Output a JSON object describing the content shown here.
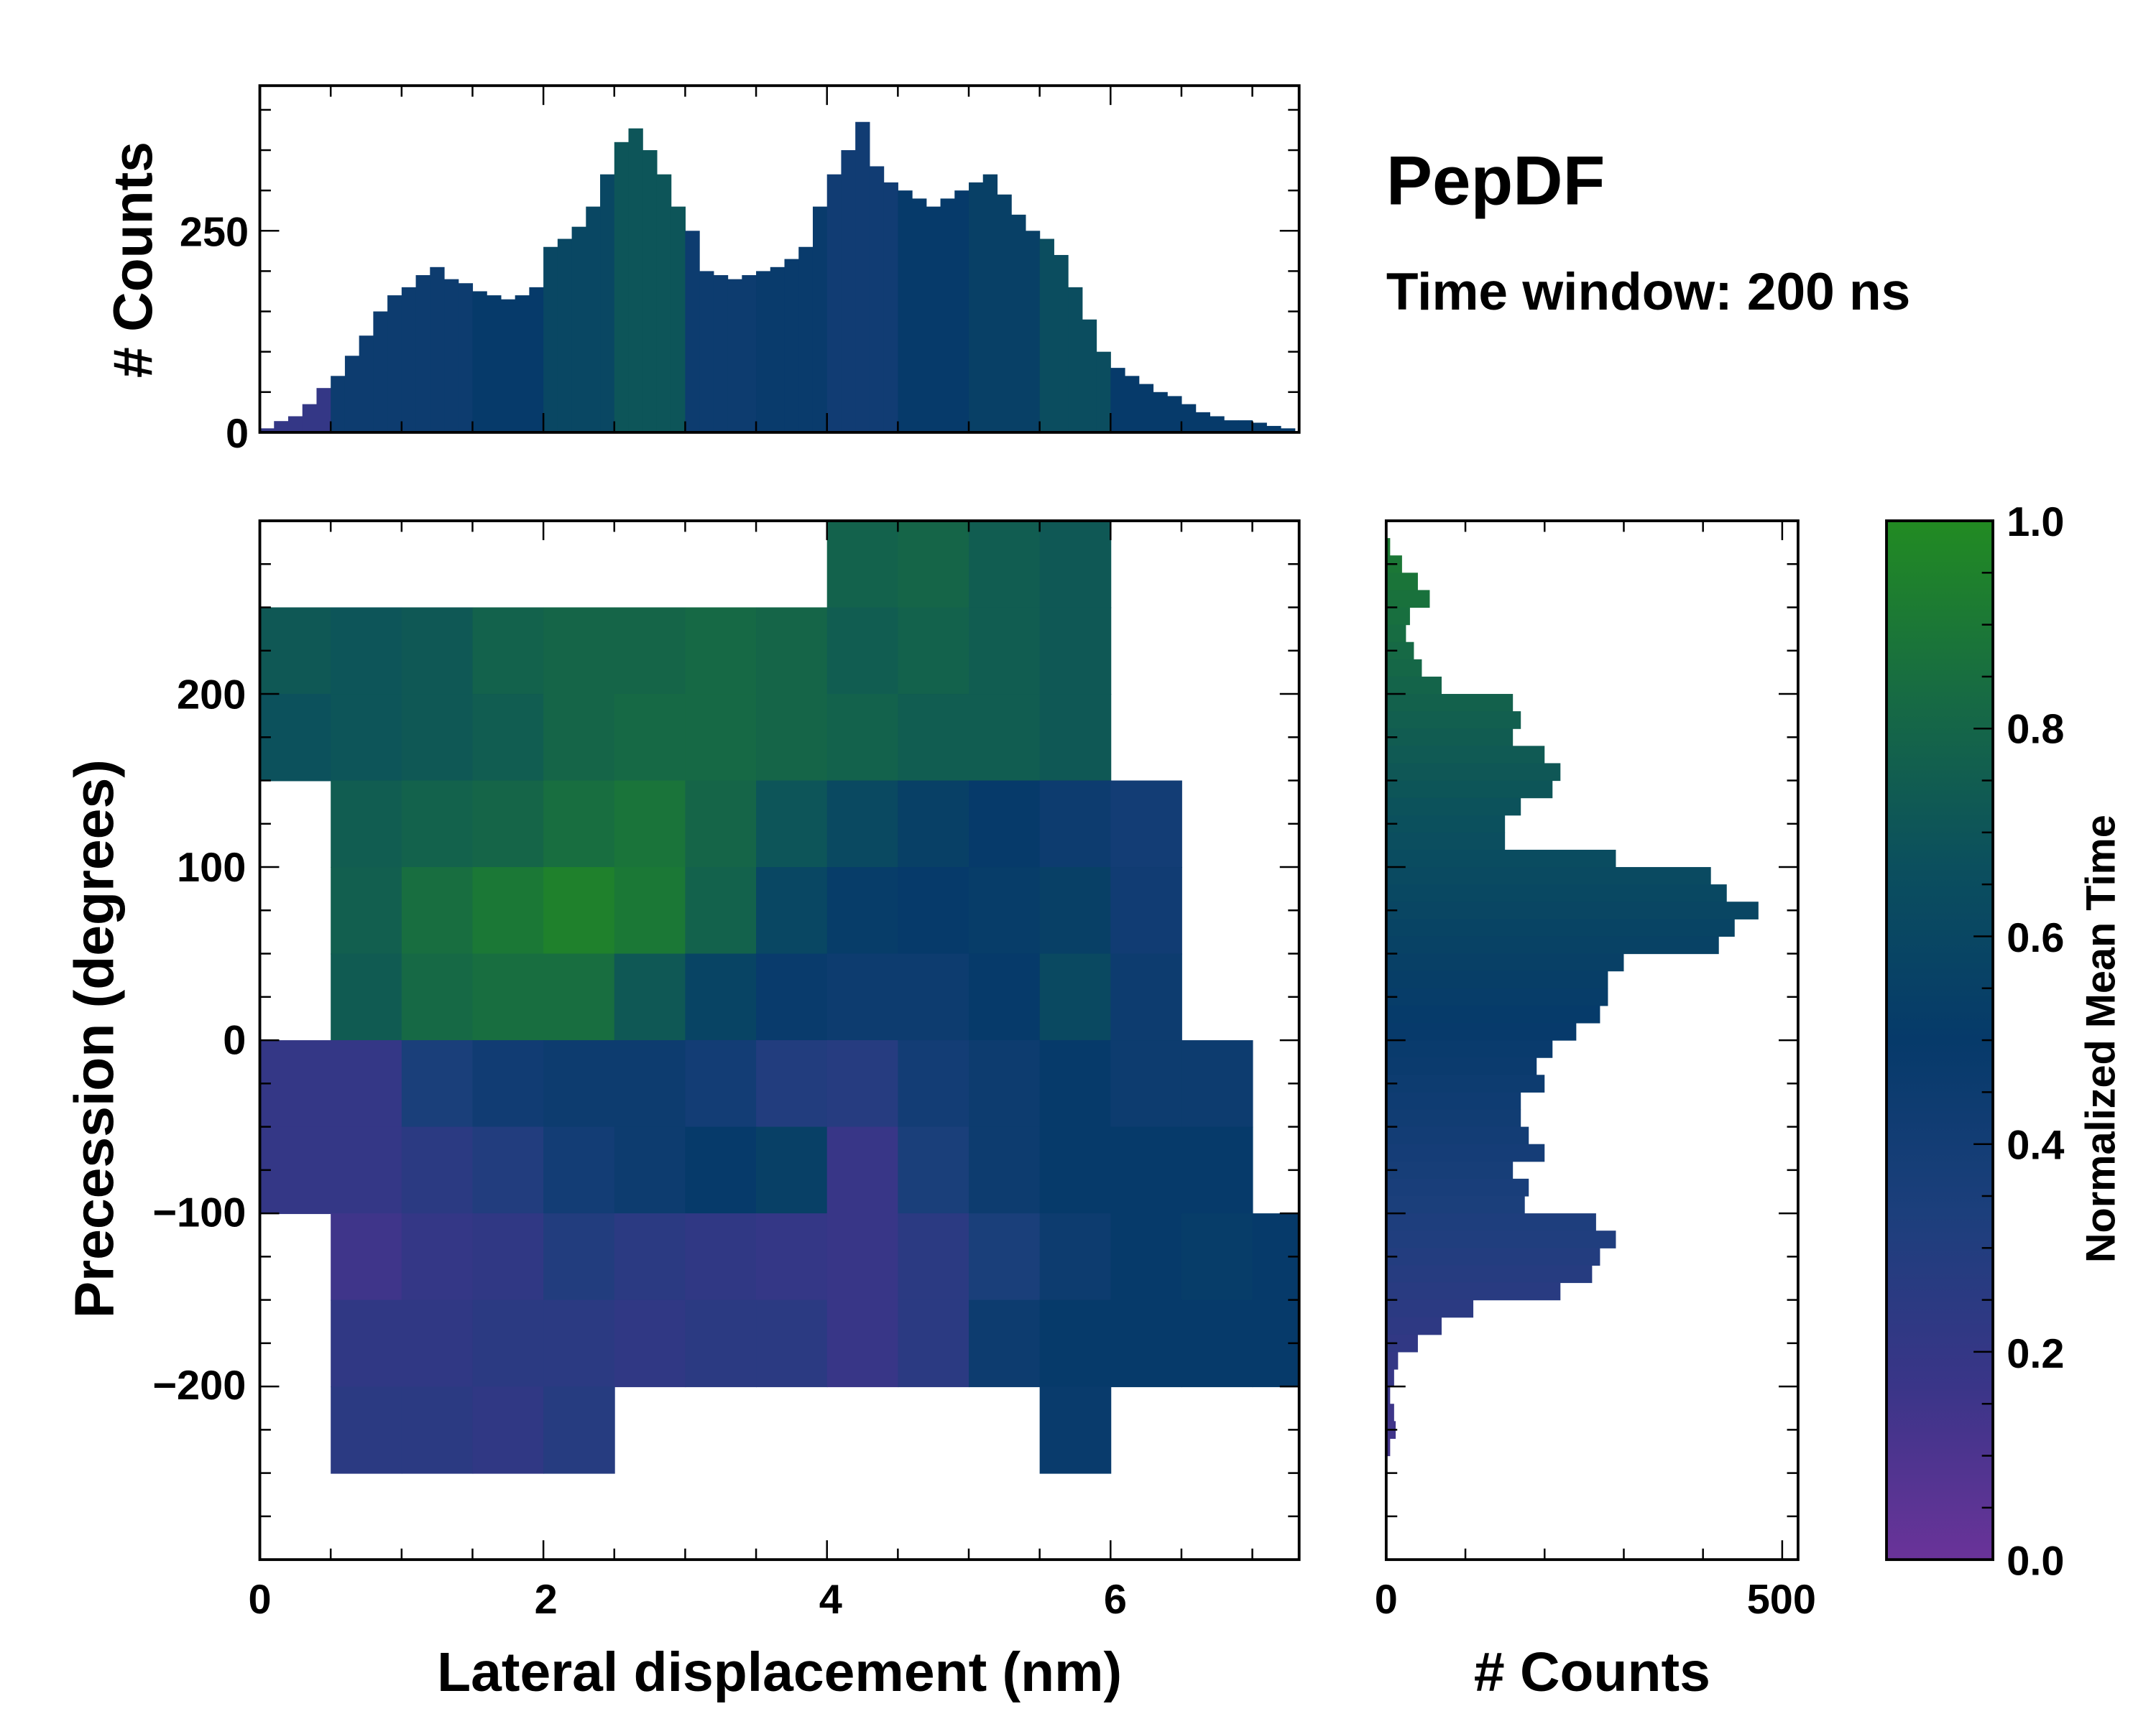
{
  "chart_data": [
    {
      "id": "main",
      "type": "heatmap",
      "xlabel": "Lateral displacement (nm)",
      "ylabel": "Precession (degrees)",
      "xlim": [
        0,
        7.33
      ],
      "ylim": [
        -300,
        300
      ],
      "xticks": [
        "0",
        "2",
        "4",
        "6"
      ],
      "yticks": [
        "−200",
        "−100",
        "0",
        "100",
        "200"
      ],
      "x_bin_edges_start": 0,
      "x_bin_width": 0.5,
      "y_bin_top": 300,
      "y_bin_height": 50,
      "mean_time_grid": [
        [
          null,
          null,
          null,
          null,
          null,
          null,
          null,
          null,
          0.78,
          0.8,
          0.75,
          0.72,
          null,
          null,
          null
        ],
        [
          0.72,
          0.7,
          0.72,
          0.78,
          0.8,
          0.8,
          0.82,
          0.8,
          0.75,
          0.78,
          0.75,
          0.72,
          null,
          null,
          null
        ],
        [
          0.68,
          0.7,
          0.72,
          0.75,
          0.8,
          0.82,
          0.82,
          0.8,
          0.78,
          0.75,
          0.75,
          0.72,
          null,
          null,
          null
        ],
        [
          null,
          0.75,
          0.78,
          0.8,
          0.85,
          0.88,
          0.8,
          0.7,
          0.62,
          0.55,
          0.5,
          0.45,
          0.4,
          null,
          null
        ],
        [
          null,
          0.76,
          0.85,
          0.9,
          0.95,
          0.9,
          0.78,
          0.6,
          0.52,
          0.5,
          0.52,
          0.55,
          0.42,
          null,
          null
        ],
        [
          null,
          0.74,
          0.82,
          0.85,
          0.85,
          0.72,
          0.58,
          0.48,
          0.45,
          0.45,
          0.5,
          0.62,
          0.45,
          null,
          null
        ],
        [
          0.2,
          0.2,
          0.35,
          0.42,
          0.45,
          0.45,
          0.4,
          0.3,
          0.28,
          0.4,
          0.45,
          0.5,
          0.45,
          0.45,
          null
        ],
        [
          0.2,
          0.2,
          0.25,
          0.3,
          0.4,
          0.45,
          0.5,
          0.55,
          0.18,
          0.35,
          0.45,
          0.5,
          0.5,
          0.5,
          null
        ],
        [
          null,
          0.15,
          0.2,
          0.22,
          0.3,
          0.25,
          0.22,
          0.2,
          0.18,
          0.25,
          0.35,
          0.45,
          0.5,
          0.52,
          0.5
        ],
        [
          null,
          0.22,
          0.22,
          0.25,
          0.25,
          0.22,
          0.25,
          0.25,
          0.18,
          0.25,
          0.45,
          0.5,
          0.5,
          0.5,
          0.5
        ],
        [
          null,
          0.25,
          0.25,
          0.22,
          0.28,
          null,
          null,
          null,
          null,
          null,
          null,
          0.48,
          null,
          null,
          null
        ],
        [
          null,
          null,
          null,
          null,
          null,
          null,
          null,
          null,
          null,
          null,
          null,
          null,
          null,
          null,
          null
        ]
      ]
    },
    {
      "id": "top-histogram",
      "type": "bar",
      "ylabel": "# Counts",
      "yticks": [
        "0",
        "250"
      ],
      "ylim": [
        0,
        430
      ],
      "x_start": 0,
      "bin_width": 0.1,
      "counts": [
        5,
        14,
        20,
        35,
        55,
        70,
        95,
        120,
        150,
        170,
        180,
        195,
        205,
        190,
        185,
        175,
        170,
        165,
        170,
        180,
        230,
        240,
        255,
        280,
        320,
        360,
        377,
        350,
        320,
        280,
        250,
        200,
        195,
        190,
        195,
        200,
        205,
        215,
        230,
        280,
        320,
        350,
        385,
        330,
        310,
        300,
        290,
        280,
        290,
        300,
        310,
        320,
        295,
        270,
        250,
        240,
        220,
        180,
        140,
        100,
        80,
        70,
        60,
        50,
        45,
        35,
        25,
        20,
        15,
        15,
        12,
        8,
        5
      ],
      "mean_time_by_half_nm": [
        0.2,
        0.45,
        0.45,
        0.5,
        0.6,
        0.7,
        0.45,
        0.48,
        0.42,
        0.5,
        0.55,
        0.65,
        0.5,
        0.5,
        0.5
      ]
    },
    {
      "id": "right-histogram",
      "type": "bar",
      "orientation": "horizontal",
      "xlabel": "# Counts",
      "xticks": [
        "0",
        "500"
      ],
      "xlim": [
        0,
        520
      ],
      "y_top": 300,
      "bin_height": 10,
      "counts": [
        0,
        5,
        20,
        40,
        55,
        30,
        25,
        35,
        45,
        70,
        160,
        170,
        160,
        200,
        220,
        210,
        170,
        150,
        150,
        290,
        410,
        430,
        470,
        440,
        420,
        300,
        280,
        280,
        270,
        240,
        210,
        190,
        200,
        170,
        170,
        180,
        200,
        160,
        180,
        175,
        265,
        290,
        270,
        260,
        220,
        110,
        70,
        40,
        15,
        10,
        5,
        10,
        12,
        5,
        0,
        0,
        0,
        0,
        0,
        0
      ]
    }
  ],
  "annotations": {
    "title": "PepDF",
    "subtitle": "Time window: 200 ns"
  },
  "colorbar": {
    "label": "Normalized Mean Time",
    "ticks": [
      "0.0",
      "0.2",
      "0.4",
      "0.6",
      "0.8",
      "1.0"
    ],
    "range": [
      0,
      1
    ],
    "colors": [
      "#6a3399",
      "#3a3588",
      "#1c3f7c",
      "#063a6a",
      "#0b4f5e",
      "#176b43",
      "#228b22"
    ]
  }
}
